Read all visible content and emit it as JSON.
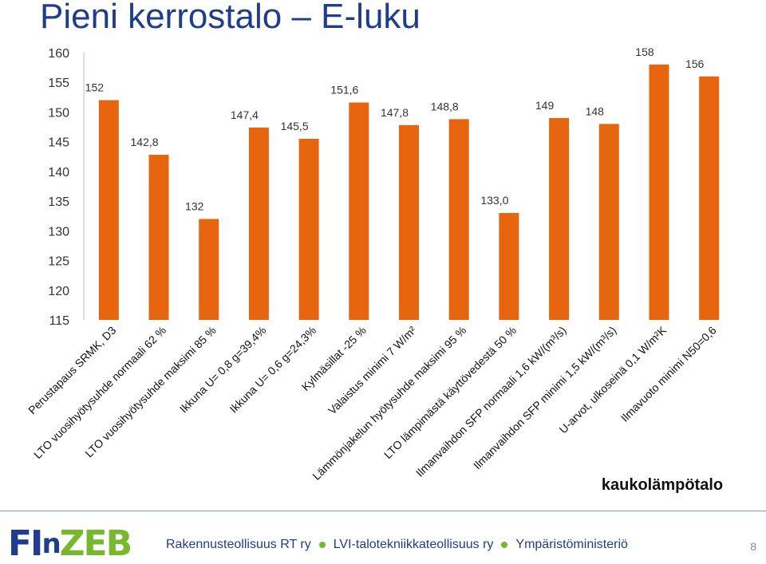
{
  "slide": {
    "title": "Pieni kerrostalo – E-luku",
    "page_number": "8"
  },
  "chart_data": {
    "type": "bar",
    "categories": [
      "Perustapaus SRMK, D3",
      "LTO vuosihyötysuhde normaali 62 %",
      "LTO vuosihyötysuhde maksimi 85 %",
      "Ikkuna U= 0,8 g=39,4%",
      "Ikkuna U= 0,6 g=24,3%",
      "Kylmäsillat -25 %",
      "Valaistus minimi 7 W/m²",
      "Lämmönjakelun hyötysuhde maksimi 95 %",
      "LTO lämpimästä käyttövedestä 50 %",
      "Ilmanvaihdon SFP normaali 1,6 kW/(m³/s)",
      "Ilmanvaihdon SFP minimi 1,5 kW/(m³/s)",
      "U-arvot, ulkoseinä 0,1 W/m²K",
      "Ilmavuoto minimi N50=0,6"
    ],
    "values": [
      152,
      142.8,
      132,
      147.4,
      145.5,
      151.6,
      147.8,
      148.8,
      133.0,
      149,
      148,
      158,
      156
    ],
    "data_labels": [
      "152",
      "142,8",
      "132",
      "147,4",
      "145,5",
      "151,6",
      "147,8",
      "148,8",
      "133,0",
      "149",
      "148",
      "158",
      "156"
    ],
    "y_ticks": [
      "115",
      "120",
      "125",
      "130",
      "135",
      "140",
      "145",
      "150",
      "155",
      "160"
    ],
    "ylim": [
      115,
      160
    ],
    "annotation": "kaukolämpötalo",
    "bar_color": "#e8650f",
    "grid": false
  },
  "footer": {
    "logo_part1": "FI",
    "logo_part2": "n",
    "logo_part3": "ZEB",
    "org1": "Rakennusteollisuus RT ry",
    "org2": "LVI-talotekniikkateollisuus ry",
    "org3": "Ympäristöministeriö"
  }
}
